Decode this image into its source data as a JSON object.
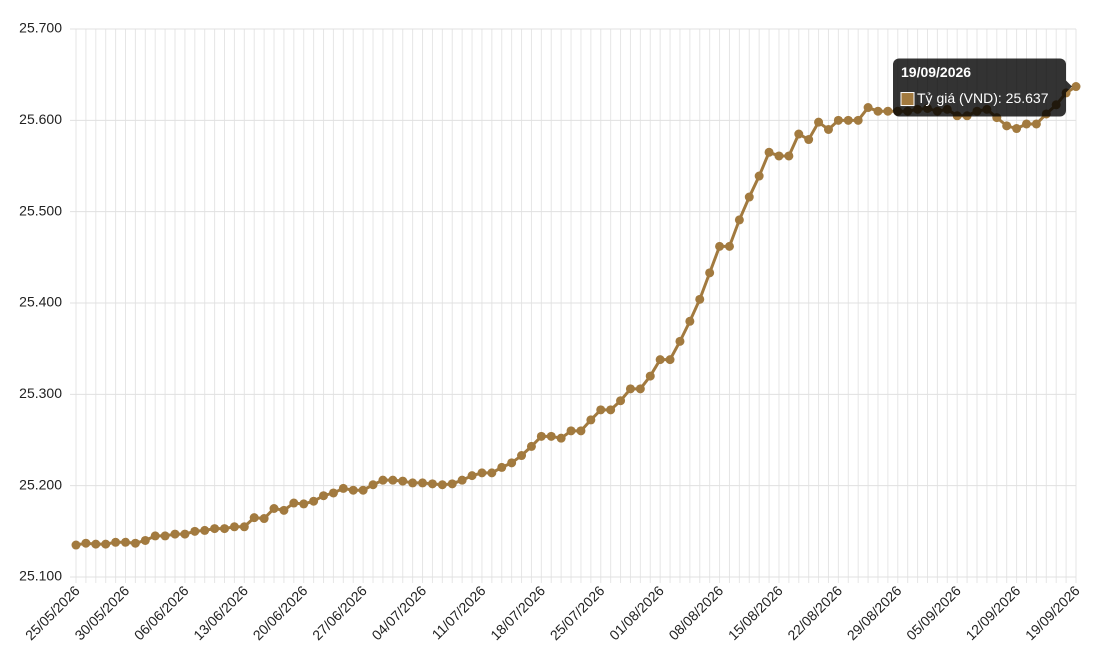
{
  "chart_data": {
    "type": "line",
    "categories": [
      "25/05/2026",
      null,
      null,
      null,
      null,
      "30/05/2026",
      null,
      null,
      null,
      null,
      null,
      "06/06/2026",
      null,
      null,
      null,
      null,
      null,
      "13/06/2026",
      null,
      null,
      null,
      null,
      null,
      "20/06/2026",
      null,
      null,
      null,
      null,
      null,
      "27/06/2026",
      null,
      null,
      null,
      null,
      null,
      "04/07/2026",
      null,
      null,
      null,
      null,
      null,
      "11/07/2026",
      null,
      null,
      null,
      null,
      null,
      "18/07/2026",
      null,
      null,
      null,
      null,
      null,
      "25/07/2026",
      null,
      null,
      null,
      null,
      null,
      "01/08/2026",
      null,
      null,
      null,
      null,
      null,
      "08/08/2026",
      null,
      null,
      null,
      null,
      null,
      "15/08/2026",
      null,
      null,
      null,
      null,
      null,
      "22/08/2026",
      null,
      null,
      null,
      null,
      null,
      "29/08/2026",
      null,
      null,
      null,
      null,
      null,
      "05/09/2026",
      null,
      null,
      null,
      null,
      null,
      "12/09/2026",
      null,
      null,
      null,
      null,
      null,
      "19/09/2026"
    ],
    "series": [
      {
        "color": "#a27a3f",
        "values": [
          25135,
          25137,
          25136,
          25136,
          25138,
          25138,
          25137,
          25140,
          25145,
          25145,
          25147,
          25147,
          25150,
          25151,
          25153,
          25153,
          25155,
          25155,
          25165,
          25164,
          25175,
          25173,
          25181,
          25180,
          25183,
          25189,
          25192,
          25197,
          25195,
          25195,
          25201,
          25206,
          25206,
          25205,
          25203,
          25203,
          25202,
          25201,
          25202,
          25206,
          25211,
          25214,
          25214,
          25220,
          25225,
          25233,
          25243,
          25254,
          25254,
          25252,
          25260,
          25260,
          25272,
          25283,
          25283,
          25293,
          25306,
          25306,
          25320,
          25338,
          25338,
          25358,
          25380,
          25404,
          25433,
          25462,
          25462,
          25491,
          25516,
          25539,
          25565,
          25561,
          25561,
          25585,
          25579,
          25598,
          25590,
          25600,
          25600,
          25600,
          25614,
          25610,
          25610,
          25610,
          25610,
          25612,
          25613,
          25610,
          25612,
          25605,
          25605,
          25610,
          25612,
          25603,
          25594,
          25591,
          25596,
          25596,
          25607,
          25617,
          25630,
          25637
        ]
      }
    ],
    "ylim": [
      25100,
      25700
    ],
    "yticks": [
      {
        "value": 25100,
        "label": "25.100"
      },
      {
        "value": 25200,
        "label": "25.200"
      },
      {
        "value": 25300,
        "label": "25.300"
      },
      {
        "value": 25400,
        "label": "25.400"
      },
      {
        "value": 25500,
        "label": "25.500"
      },
      {
        "value": 25600,
        "label": "25.600"
      },
      {
        "value": 25700,
        "label": "25.700"
      }
    ],
    "grid": true,
    "tooltip": {
      "label": "Tỷ giá (VND): 25.637"
    }
  }
}
